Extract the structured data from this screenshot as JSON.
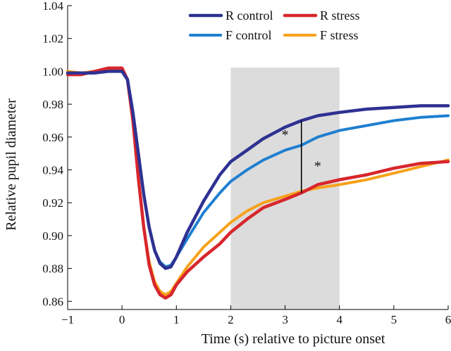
{
  "chart_data": {
    "type": "line",
    "title": "",
    "xlabel": "Time (s) relative to picture onset",
    "ylabel": "Relative pupil diameter",
    "xlim": [
      -1,
      6
    ],
    "ylim": [
      0.855,
      1.04
    ],
    "xticks": [
      -1,
      0,
      1,
      2,
      3,
      4,
      5,
      6
    ],
    "xtick_labels": [
      "−1",
      "0",
      "1",
      "2",
      "3",
      "4",
      "5",
      "6"
    ],
    "yticks": [
      0.86,
      0.88,
      0.9,
      0.92,
      0.94,
      0.96,
      0.98,
      1.0,
      1.02,
      1.04
    ],
    "ytick_labels": [
      "0.86",
      "0.88",
      "0.90",
      "0.92",
      "0.94",
      "0.96",
      "0.98",
      "1.00",
      "1.02",
      "1.04"
    ],
    "shaded_region": {
      "x": [
        2,
        4
      ],
      "color": "#dcdcdc"
    },
    "legend_position": "top-right",
    "series": [
      {
        "name": "R control",
        "color": "#2e3192",
        "style": "solid",
        "x": [
          -1,
          -0.75,
          -0.5,
          -0.25,
          0,
          0.1,
          0.2,
          0.3,
          0.4,
          0.5,
          0.6,
          0.7,
          0.8,
          0.9,
          1.0,
          1.2,
          1.5,
          1.8,
          2.0,
          2.3,
          2.6,
          3.0,
          3.3,
          3.6,
          4.0,
          4.5,
          5.0,
          5.5,
          6.0
        ],
        "y": [
          0.999,
          0.999,
          0.999,
          1.0,
          1.0,
          0.995,
          0.975,
          0.95,
          0.925,
          0.905,
          0.891,
          0.883,
          0.88,
          0.881,
          0.887,
          0.902,
          0.921,
          0.937,
          0.945,
          0.952,
          0.959,
          0.966,
          0.97,
          0.973,
          0.975,
          0.977,
          0.978,
          0.979,
          0.979
        ]
      },
      {
        "name": "R stress",
        "color": "#d7262c",
        "style": "solid",
        "x": [
          -1,
          -0.75,
          -0.5,
          -0.25,
          0,
          0.1,
          0.2,
          0.3,
          0.4,
          0.5,
          0.6,
          0.7,
          0.8,
          0.9,
          1.0,
          1.2,
          1.5,
          1.8,
          2.0,
          2.3,
          2.6,
          3.0,
          3.3,
          3.6,
          4.0,
          4.5,
          5.0,
          5.5,
          6.0
        ],
        "y": [
          0.998,
          0.998,
          1.0,
          1.002,
          1.002,
          0.995,
          0.97,
          0.935,
          0.905,
          0.882,
          0.87,
          0.864,
          0.862,
          0.864,
          0.87,
          0.878,
          0.887,
          0.895,
          0.902,
          0.91,
          0.917,
          0.922,
          0.926,
          0.931,
          0.934,
          0.937,
          0.941,
          0.944,
          0.945
        ]
      },
      {
        "name": "F control",
        "color": "#1e7fd0",
        "style": "dotted",
        "x": [
          -1,
          -0.75,
          -0.5,
          -0.25,
          0,
          0.1,
          0.2,
          0.3,
          0.4,
          0.5,
          0.6,
          0.7,
          0.8,
          0.9,
          1.0,
          1.2,
          1.5,
          1.8,
          2.0,
          2.3,
          2.6,
          3.0,
          3.3,
          3.6,
          4.0,
          4.5,
          5.0,
          5.5,
          6.0
        ],
        "y": [
          0.999,
          0.999,
          0.999,
          1.0,
          1.0,
          0.995,
          0.975,
          0.95,
          0.925,
          0.905,
          0.891,
          0.884,
          0.881,
          0.882,
          0.887,
          0.898,
          0.914,
          0.926,
          0.933,
          0.94,
          0.946,
          0.952,
          0.955,
          0.96,
          0.964,
          0.967,
          0.97,
          0.972,
          0.973
        ]
      },
      {
        "name": "F stress",
        "color": "#f7a11a",
        "style": "dotted",
        "x": [
          -1,
          -0.75,
          -0.5,
          -0.25,
          0,
          0.1,
          0.2,
          0.3,
          0.4,
          0.5,
          0.6,
          0.7,
          0.8,
          0.9,
          1.0,
          1.2,
          1.5,
          1.8,
          2.0,
          2.3,
          2.6,
          3.0,
          3.3,
          3.6,
          4.0,
          4.5,
          5.0,
          5.5,
          6.0
        ],
        "y": [
          1.0,
          0.999,
          1.0,
          1.001,
          1.001,
          0.995,
          0.97,
          0.935,
          0.905,
          0.884,
          0.872,
          0.866,
          0.864,
          0.866,
          0.871,
          0.881,
          0.893,
          0.902,
          0.908,
          0.915,
          0.92,
          0.924,
          0.927,
          0.929,
          0.931,
          0.934,
          0.938,
          0.942,
          0.946
        ]
      }
    ],
    "annotations": [
      {
        "text": "*",
        "x": 3.0,
        "y": 0.962
      },
      {
        "text": "*",
        "x": 3.6,
        "y": 0.943
      }
    ],
    "brackets": [
      {
        "x": 3.3,
        "y_from": 0.955,
        "y_to": 0.97
      },
      {
        "x": 3.3,
        "y_from": 0.926,
        "y_to": 0.955
      }
    ]
  }
}
